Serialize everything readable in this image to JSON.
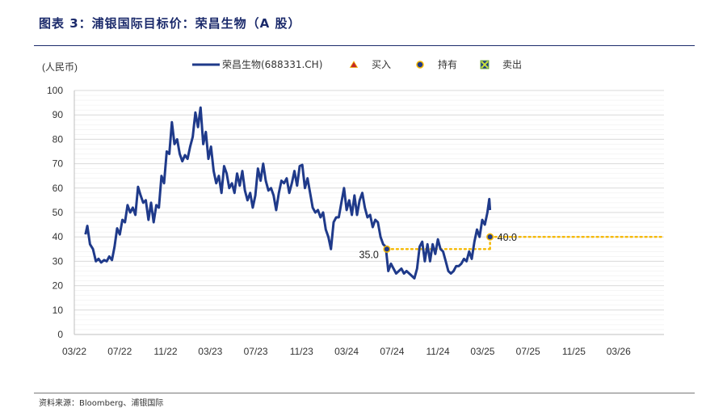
{
  "figure": {
    "title": "图表 3：浦银国际目标价：荣昌生物（A 股）",
    "source": "资料来源：Bloomberg、浦银国际"
  },
  "chart_data": {
    "type": "line",
    "ylabel": "(人民币)",
    "ylim": [
      0,
      100
    ],
    "yticks": [
      "0",
      "10",
      "20",
      "30",
      "40",
      "50",
      "60",
      "70",
      "80",
      "90",
      "100"
    ],
    "x_range": [
      "2022-03",
      "2026-07"
    ],
    "xticks": [
      "03/22",
      "07/22",
      "11/22",
      "03/23",
      "07/23",
      "11/23",
      "03/24",
      "07/24",
      "11/24",
      "03/25",
      "07/25",
      "11/25",
      "03/26"
    ],
    "grid": true,
    "legend": {
      "position": "top",
      "entries": [
        {
          "name": "荣昌生物(688331.CH)",
          "kind": "line",
          "color": "#1f3a8a"
        },
        {
          "name": "买入",
          "kind": "triangle",
          "color": "#c62828"
        },
        {
          "name": "持有",
          "kind": "circle",
          "color": "#1f3a8a"
        },
        {
          "name": "卖出",
          "kind": "cross",
          "color": "#7cb342"
        }
      ]
    },
    "series": [
      {
        "name": "荣昌生物(688331.CH)",
        "color": "#1f3a8a",
        "points": [
          [
            "2022-03-31",
            41
          ],
          [
            "2022-04-05",
            44.5
          ],
          [
            "2022-04-12",
            37
          ],
          [
            "2022-04-20",
            35
          ],
          [
            "2022-04-28",
            30
          ],
          [
            "2022-05-05",
            31
          ],
          [
            "2022-05-12",
            29.5
          ],
          [
            "2022-05-20",
            30.5
          ],
          [
            "2022-05-27",
            30
          ],
          [
            "2022-06-03",
            32
          ],
          [
            "2022-06-10",
            30.5
          ],
          [
            "2022-06-17",
            36
          ],
          [
            "2022-06-24",
            43.5
          ],
          [
            "2022-07-01",
            41
          ],
          [
            "2022-07-08",
            47
          ],
          [
            "2022-07-15",
            46
          ],
          [
            "2022-07-22",
            53
          ],
          [
            "2022-07-29",
            50
          ],
          [
            "2022-08-05",
            52
          ],
          [
            "2022-08-12",
            49
          ],
          [
            "2022-08-19",
            60.5
          ],
          [
            "2022-08-26",
            57
          ],
          [
            "2022-09-02",
            54
          ],
          [
            "2022-09-09",
            55
          ],
          [
            "2022-09-16",
            47
          ],
          [
            "2022-09-23",
            54
          ],
          [
            "2022-09-30",
            46
          ],
          [
            "2022-10-07",
            53
          ],
          [
            "2022-10-14",
            52
          ],
          [
            "2022-10-21",
            65
          ],
          [
            "2022-10-28",
            62
          ],
          [
            "2022-11-04",
            75
          ],
          [
            "2022-11-11",
            74
          ],
          [
            "2022-11-18",
            87
          ],
          [
            "2022-11-25",
            78
          ],
          [
            "2022-12-02",
            80
          ],
          [
            "2022-12-09",
            74
          ],
          [
            "2022-12-16",
            71
          ],
          [
            "2022-12-23",
            73.5
          ],
          [
            "2022-12-30",
            72
          ],
          [
            "2023-01-06",
            77
          ],
          [
            "2023-01-13",
            81
          ],
          [
            "2023-01-20",
            91
          ],
          [
            "2023-01-27",
            85
          ],
          [
            "2023-02-03",
            93
          ],
          [
            "2023-02-10",
            78
          ],
          [
            "2023-02-17",
            83
          ],
          [
            "2023-02-24",
            72
          ],
          [
            "2023-03-03",
            77
          ],
          [
            "2023-03-10",
            67
          ],
          [
            "2023-03-17",
            62
          ],
          [
            "2023-03-24",
            65
          ],
          [
            "2023-03-31",
            58
          ],
          [
            "2023-04-07",
            69
          ],
          [
            "2023-04-14",
            66
          ],
          [
            "2023-04-21",
            60
          ],
          [
            "2023-04-28",
            62
          ],
          [
            "2023-05-05",
            58
          ],
          [
            "2023-05-12",
            66
          ],
          [
            "2023-05-19",
            61
          ],
          [
            "2023-05-26",
            67
          ],
          [
            "2023-06-02",
            59
          ],
          [
            "2023-06-09",
            55
          ],
          [
            "2023-06-16",
            58
          ],
          [
            "2023-06-23",
            52
          ],
          [
            "2023-06-30",
            57
          ],
          [
            "2023-07-07",
            68
          ],
          [
            "2023-07-14",
            63
          ],
          [
            "2023-07-21",
            70
          ],
          [
            "2023-07-28",
            63
          ],
          [
            "2023-08-04",
            59
          ],
          [
            "2023-08-11",
            60
          ],
          [
            "2023-08-18",
            57
          ],
          [
            "2023-08-25",
            51
          ],
          [
            "2023-09-01",
            58
          ],
          [
            "2023-09-08",
            63
          ],
          [
            "2023-09-15",
            62
          ],
          [
            "2023-09-22",
            64
          ],
          [
            "2023-09-29",
            58
          ],
          [
            "2023-10-06",
            62
          ],
          [
            "2023-10-13",
            67
          ],
          [
            "2023-10-20",
            61
          ],
          [
            "2023-10-27",
            69
          ],
          [
            "2023-11-03",
            69.5
          ],
          [
            "2023-11-10",
            60
          ],
          [
            "2023-11-17",
            64
          ],
          [
            "2023-11-24",
            58
          ],
          [
            "2023-12-01",
            52
          ],
          [
            "2023-12-08",
            50
          ],
          [
            "2023-12-15",
            51
          ],
          [
            "2023-12-22",
            48
          ],
          [
            "2023-12-29",
            50
          ],
          [
            "2024-01-05",
            43
          ],
          [
            "2024-01-12",
            40
          ],
          [
            "2024-01-19",
            35
          ],
          [
            "2024-01-26",
            46
          ],
          [
            "2024-02-02",
            48
          ],
          [
            "2024-02-09",
            48
          ],
          [
            "2024-02-16",
            54
          ],
          [
            "2024-02-23",
            60
          ],
          [
            "2024-03-01",
            51
          ],
          [
            "2024-03-08",
            55
          ],
          [
            "2024-03-15",
            49
          ],
          [
            "2024-03-22",
            57
          ],
          [
            "2024-03-29",
            49
          ],
          [
            "2024-04-05",
            55
          ],
          [
            "2024-04-12",
            58
          ],
          [
            "2024-04-19",
            52
          ],
          [
            "2024-04-26",
            48
          ],
          [
            "2024-05-03",
            49
          ],
          [
            "2024-05-10",
            44
          ],
          [
            "2024-05-17",
            47
          ],
          [
            "2024-05-24",
            46
          ],
          [
            "2024-05-31",
            40
          ],
          [
            "2024-06-07",
            37
          ],
          [
            "2024-06-14",
            36
          ],
          [
            "2024-06-21",
            26
          ],
          [
            "2024-06-28",
            29
          ],
          [
            "2024-07-05",
            27
          ],
          [
            "2024-07-12",
            25
          ],
          [
            "2024-07-19",
            26
          ],
          [
            "2024-07-26",
            27
          ],
          [
            "2024-08-02",
            25
          ],
          [
            "2024-08-09",
            26
          ],
          [
            "2024-08-16",
            25
          ],
          [
            "2024-08-23",
            24
          ],
          [
            "2024-08-30",
            23
          ],
          [
            "2024-09-06",
            27
          ],
          [
            "2024-09-13",
            36
          ],
          [
            "2024-09-20",
            38
          ],
          [
            "2024-09-27",
            30
          ],
          [
            "2024-10-04",
            37
          ],
          [
            "2024-10-11",
            30
          ],
          [
            "2024-10-18",
            37
          ],
          [
            "2024-10-25",
            33
          ],
          [
            "2024-11-01",
            39
          ],
          [
            "2024-11-08",
            35
          ],
          [
            "2024-11-15",
            34
          ],
          [
            "2024-11-22",
            30
          ],
          [
            "2024-11-29",
            26
          ],
          [
            "2024-12-06",
            25
          ],
          [
            "2024-12-13",
            26
          ],
          [
            "2024-12-20",
            28
          ],
          [
            "2024-12-27",
            28
          ],
          [
            "2025-01-03",
            29
          ],
          [
            "2025-01-10",
            31
          ],
          [
            "2025-01-17",
            30
          ],
          [
            "2025-01-24",
            34
          ],
          [
            "2025-01-31",
            31
          ],
          [
            "2025-02-07",
            38
          ],
          [
            "2025-02-14",
            43
          ],
          [
            "2025-02-21",
            40
          ],
          [
            "2025-02-28",
            47
          ],
          [
            "2025-03-07",
            45
          ],
          [
            "2025-03-14",
            50
          ],
          [
            "2025-03-19",
            55.5
          ],
          [
            "2025-03-21",
            51
          ]
        ]
      }
    ],
    "ratings": [
      {
        "date": "2024-06-17",
        "target": 35.0,
        "rating": "持有",
        "label": "35.0"
      },
      {
        "date": "2025-03-21",
        "target": 40.0,
        "rating": "持有",
        "label": "40.0"
      }
    ],
    "target_end": "2026-07-01",
    "target_line_color": "#f5b800"
  }
}
